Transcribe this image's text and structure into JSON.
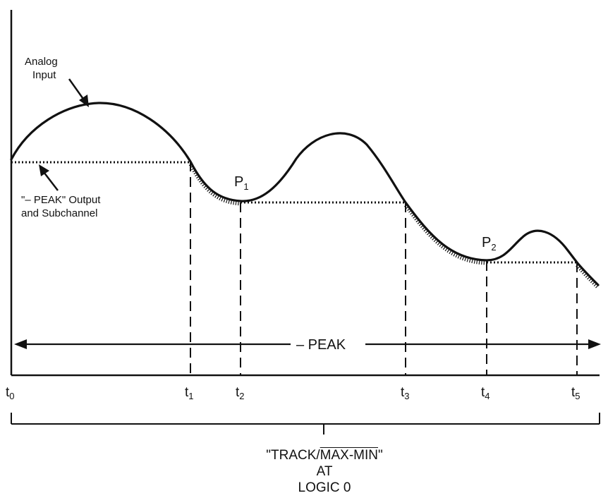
{
  "diagram": {
    "curve_label_line1": "Analog",
    "curve_label_line2": "Input",
    "output_label_line1": "\"– PEAK\" Output",
    "output_label_line2": "and Subchannel",
    "peak_1": {
      "main": "P",
      "sub": "1"
    },
    "peak_2": {
      "main": "P",
      "sub": "2"
    },
    "span_label": "– PEAK",
    "times": [
      {
        "main": "t",
        "sub": "0"
      },
      {
        "main": "t",
        "sub": "1"
      },
      {
        "main": "t",
        "sub": "2"
      },
      {
        "main": "t",
        "sub": "3"
      },
      {
        "main": "t",
        "sub": "4"
      },
      {
        "main": "t",
        "sub": "5"
      }
    ],
    "caption": {
      "quote_open": "\"TRACK/",
      "overlined": "MAX-MIN",
      "quote_close": "\"",
      "line2": "AT",
      "line3": "LOGIC 0"
    },
    "colors": {
      "ink": "#111111",
      "background": "#ffffff"
    }
  }
}
